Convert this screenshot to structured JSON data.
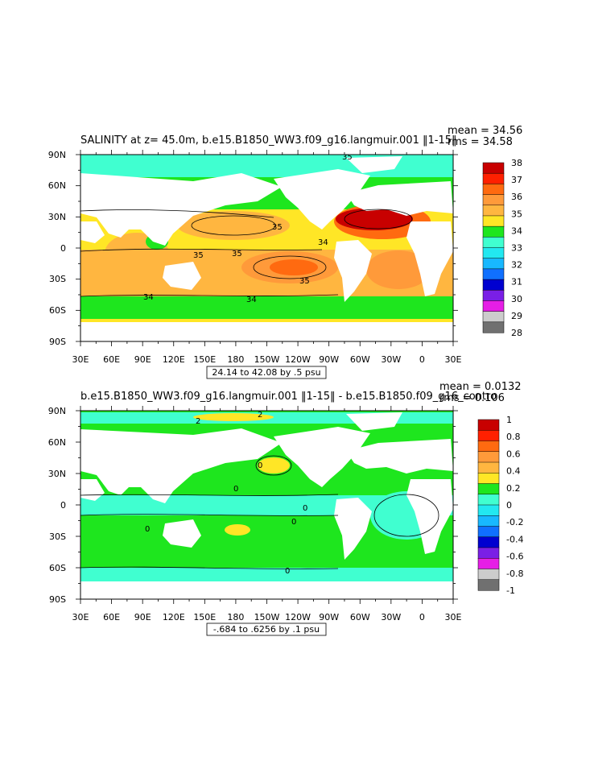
{
  "panels": [
    {
      "title": "SALINITY at z=  45.0m, b.e15.B1850_WW3.f09_g16.langmuir.001 ‖1-15‖",
      "mean_text": "mean = 34.56",
      "rms_text": "rms = 34.58",
      "range_label": "24.14 to 42.08 by .5 psu",
      "lat_labels": [
        "90N",
        "60N",
        "30N",
        "0",
        "30S",
        "60S",
        "90S"
      ],
      "lon_labels": [
        "30E",
        "60E",
        "90E",
        "120E",
        "150E",
        "180",
        "150W",
        "120W",
        "90W",
        "60W",
        "30W",
        "0",
        "30E"
      ],
      "contour_labels": [
        "35",
        "35",
        "34",
        "35",
        "35",
        "34",
        "34",
        "35"
      ],
      "colorbar": {
        "labels": [
          "38",
          "37",
          "36",
          "35",
          "34",
          "33",
          "32",
          "31",
          "30",
          "29",
          "28"
        ],
        "colors": [
          "#c80000",
          "#ff2000",
          "#ff6a10",
          "#ff9a3a",
          "#ffb640",
          "#ffe626",
          "#1ee61e",
          "#40ffd0",
          "#22e8f0",
          "#18b8ff",
          "#1070ff",
          "#0000d0",
          "#7a1fe6",
          "#e61ee6",
          "#cccccc",
          "#707070"
        ]
      }
    },
    {
      "title": "b.e15.B1850_WW3.f09_g16.langmuir.001 ‖1-15‖ - b.e15.B1850.f09_g16_contro",
      "mean_text": "mean = 0.0132",
      "rms_text": "rms = 0.106",
      "range_label": "-.684 to .6256 by .1 psu",
      "lat_labels": [
        "90N",
        "60N",
        "30N",
        "0",
        "30S",
        "60S",
        "90S"
      ],
      "lon_labels": [
        "30E",
        "60E",
        "90E",
        "120E",
        "150E",
        "180",
        "150W",
        "120W",
        "90W",
        "60W",
        "30W",
        "0",
        "30E"
      ],
      "contour_labels": [
        "2",
        "2",
        "0",
        "0",
        "0",
        "0",
        "0",
        "0"
      ],
      "colorbar": {
        "labels": [
          "1",
          "0.8",
          "0.6",
          "0.4",
          "0.2",
          "0",
          "-0.2",
          "-0.4",
          "-0.6",
          "-0.8",
          "-1"
        ],
        "colors": [
          "#c80000",
          "#ff2000",
          "#ff6a10",
          "#ff9a3a",
          "#ffb640",
          "#ffe626",
          "#1ee61e",
          "#40ffd0",
          "#22e8f0",
          "#18b8ff",
          "#1070ff",
          "#0000d0",
          "#7a1fe6",
          "#e61ee6",
          "#cccccc",
          "#707070"
        ]
      }
    }
  ]
}
